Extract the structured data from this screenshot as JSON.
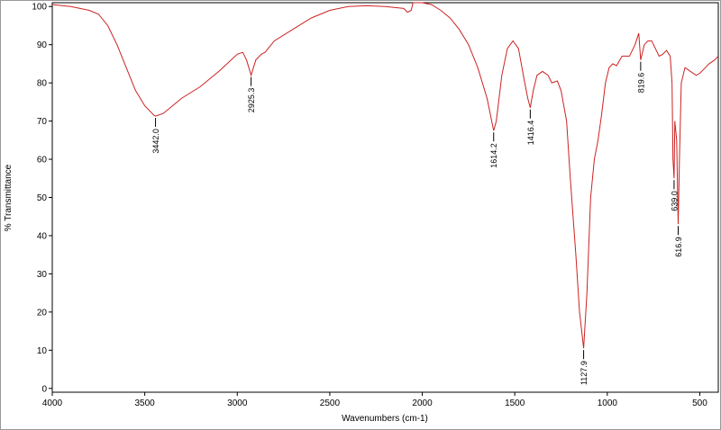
{
  "chart_data": {
    "type": "line",
    "x_label": "Wavenumbers (cm-1)",
    "y_label": "% Transmittance",
    "xlim": [
      4000,
      400
    ],
    "ylim": [
      -1,
      101
    ],
    "xticks": [
      4000,
      3500,
      3000,
      2500,
      2000,
      1500,
      1000,
      500
    ],
    "yticks": [
      0,
      10,
      20,
      30,
      40,
      50,
      60,
      70,
      80,
      90,
      100
    ],
    "series": [
      {
        "color": "#cc2222",
        "x": [
          4000,
          3900,
          3800,
          3750,
          3700,
          3650,
          3600,
          3550,
          3500,
          3450,
          3442,
          3400,
          3350,
          3300,
          3200,
          3100,
          3000,
          2970,
          2950,
          2925.3,
          2900,
          2870,
          2850,
          2800,
          2700,
          2600,
          2500,
          2400,
          2300,
          2200,
          2100,
          2080,
          2060,
          2050,
          2000,
          1950,
          1900,
          1850,
          1800,
          1750,
          1700,
          1650,
          1614.2,
          1600,
          1570,
          1540,
          1510,
          1480,
          1450,
          1430,
          1416.4,
          1400,
          1380,
          1350,
          1320,
          1300,
          1270,
          1250,
          1220,
          1200,
          1170,
          1150,
          1127.9,
          1110,
          1090,
          1070,
          1050,
          1030,
          1010,
          990,
          970,
          950,
          920,
          880,
          850,
          830,
          819.6,
          800,
          780,
          760,
          740,
          720,
          700,
          680,
          660,
          650,
          645,
          639,
          635,
          625,
          616.9,
          610,
          600,
          580,
          550,
          520,
          500,
          480,
          450,
          420,
          400
        ],
        "values": [
          100.5,
          100,
          99,
          98,
          95,
          90,
          84,
          78,
          74,
          71.5,
          71.3,
          72,
          74,
          76,
          79,
          83,
          87.5,
          88,
          86,
          82,
          86,
          87.5,
          88,
          91,
          94,
          97,
          99,
          100,
          100.2,
          100,
          99.5,
          98.5,
          99,
          101,
          101,
          100.5,
          99,
          97,
          94,
          90,
          84,
          76,
          67.5,
          70,
          82,
          89,
          91,
          89,
          81,
          76,
          73.5,
          78,
          82,
          83,
          82,
          80,
          80.5,
          78,
          70,
          55,
          35,
          20,
          10.5,
          25,
          50,
          60,
          65,
          72,
          80,
          84,
          85,
          84.5,
          87,
          87,
          90,
          93,
          86,
          90,
          91,
          91,
          89,
          87,
          87.5,
          88.5,
          87,
          80,
          60,
          55,
          70,
          65,
          43,
          60,
          80,
          84,
          83,
          82,
          82.5,
          83.5,
          85,
          86,
          87
        ]
      }
    ],
    "annotations": [
      {
        "value": 3442.0,
        "label": "3442.0"
      },
      {
        "value": 2925.3,
        "label": "2925.3"
      },
      {
        "value": 1614.2,
        "label": "1614.2"
      },
      {
        "value": 1416.4,
        "label": "1416.4"
      },
      {
        "value": 1127.9,
        "label": "1127.9"
      },
      {
        "value": 819.6,
        "label": "819.6"
      },
      {
        "value": 639.0,
        "label": "639.0"
      },
      {
        "value": 616.9,
        "label": "616.9"
      }
    ]
  }
}
